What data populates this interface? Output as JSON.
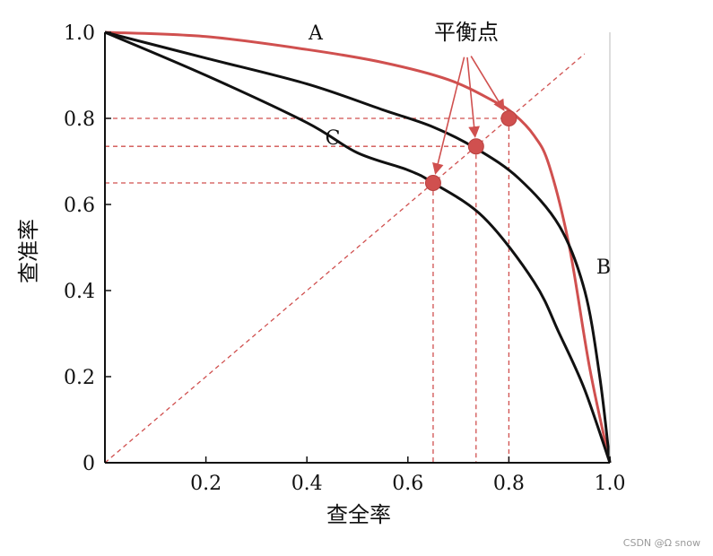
{
  "chart_data": {
    "type": "line",
    "xlabel": "查全率",
    "ylabel": "查准率",
    "xlim": [
      0,
      1
    ],
    "ylim": [
      0,
      1
    ],
    "x_ticks": [
      {
        "value": 0.2,
        "label": "0.2"
      },
      {
        "value": 0.4,
        "label": "0.4"
      },
      {
        "value": 0.6,
        "label": "0.6"
      },
      {
        "value": 0.8,
        "label": "0.8"
      },
      {
        "value": 1.0,
        "label": "1.0"
      }
    ],
    "y_ticks": [
      {
        "value": 0,
        "label": "0"
      },
      {
        "value": 0.2,
        "label": "0.2"
      },
      {
        "value": 0.4,
        "label": "0.4"
      },
      {
        "value": 0.6,
        "label": "0.6"
      },
      {
        "value": 0.8,
        "label": "0.8"
      },
      {
        "value": 1.0,
        "label": "1.0"
      }
    ],
    "grid": false,
    "series": [
      {
        "name": "A",
        "color": "#d0504f",
        "x": [
          0,
          0.2,
          0.4,
          0.55,
          0.68,
          0.77,
          0.81,
          0.85,
          0.88,
          0.92,
          0.96,
          1.0
        ],
        "y": [
          1.0,
          0.99,
          0.96,
          0.93,
          0.89,
          0.84,
          0.81,
          0.76,
          0.69,
          0.5,
          0.22,
          0
        ]
      },
      {
        "name": "B",
        "color": "#111111",
        "x": [
          0,
          0.2,
          0.4,
          0.55,
          0.65,
          0.735,
          0.82,
          0.9,
          0.95,
          0.98,
          1.0
        ],
        "y": [
          1.0,
          0.94,
          0.88,
          0.82,
          0.78,
          0.73,
          0.66,
          0.55,
          0.4,
          0.2,
          0
        ]
      },
      {
        "name": "C",
        "color": "#111111",
        "x": [
          0,
          0.2,
          0.4,
          0.5,
          0.6,
          0.65,
          0.75,
          0.85,
          0.9,
          0.95,
          1.0
        ],
        "y": [
          1.0,
          0.9,
          0.79,
          0.72,
          0.68,
          0.65,
          0.57,
          0.42,
          0.3,
          0.17,
          0
        ]
      }
    ],
    "break_even_points": [
      {
        "series": "A",
        "x": 0.8,
        "y": 0.8
      },
      {
        "series": "B",
        "x": 0.735,
        "y": 0.735
      },
      {
        "series": "C",
        "x": 0.65,
        "y": 0.65
      }
    ],
    "diagonal": {
      "from": [
        0,
        0
      ],
      "to": [
        0.95,
        0.95
      ],
      "color": "#d0504f",
      "style": "dashed"
    },
    "annotation": {
      "text": "平衡点",
      "color": "#d0504f"
    }
  },
  "watermark": "CSDN @Ω snow"
}
